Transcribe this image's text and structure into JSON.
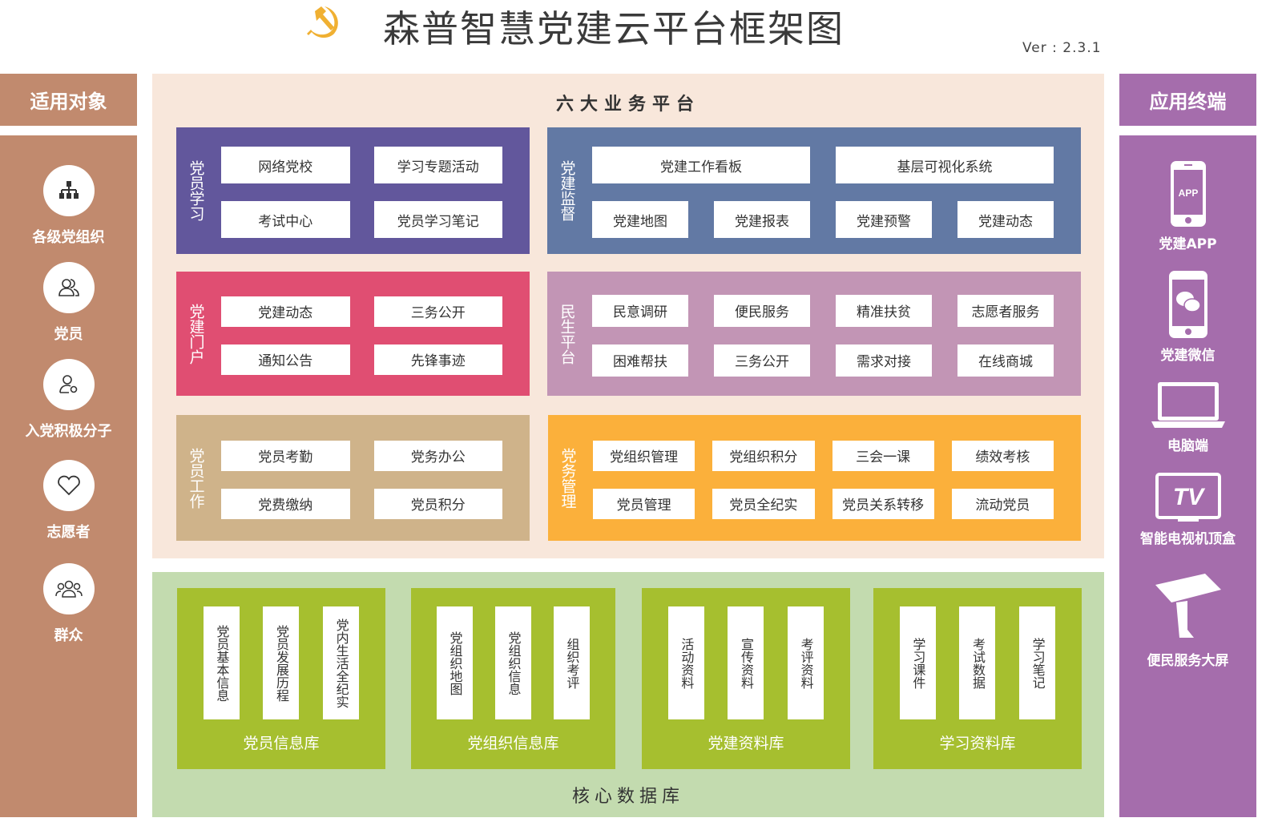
{
  "header": {
    "title": "森普智慧党建云平台框架图",
    "version": "Ver : 2.3.1",
    "logo": "hammer-sickle-icon",
    "logo_color": "#f0b032"
  },
  "left": {
    "title": "适用对象",
    "color": "#c18a6e",
    "items": [
      {
        "label": "各级党组织",
        "icon": "org-chart-icon"
      },
      {
        "label": "党员",
        "icon": "users-icon"
      },
      {
        "label": "入党积极分子",
        "icon": "user-gear-icon"
      },
      {
        "label": "志愿者",
        "icon": "heart-icon"
      },
      {
        "label": "群众",
        "icon": "group-icon"
      }
    ]
  },
  "right": {
    "title": "应用终端",
    "color": "#a56dac",
    "items": [
      {
        "label": "党建APP",
        "icon": "phone-app-icon",
        "icon_text": "APP"
      },
      {
        "label": "党建微信",
        "icon": "wechat-phone-icon"
      },
      {
        "label": "电脑端",
        "icon": "laptop-icon"
      },
      {
        "label": "智能电视机顶盒",
        "icon": "tv-icon",
        "icon_text": "TV"
      },
      {
        "label": "便民服务大屏",
        "icon": "kiosk-icon"
      }
    ]
  },
  "platforms": {
    "title": "六大业务平台",
    "boxes": [
      {
        "label": "党员学习",
        "color": "#62579c",
        "items": [
          "网络党校",
          "学习专题活动",
          "考试中心",
          "党员学习笔记"
        ]
      },
      {
        "label": "党建监督",
        "color": "#6279a4",
        "items": [
          "党建工作看板",
          "基层可视化系统",
          "党建地图",
          "党建报表",
          "党建预警",
          "党建动态"
        ]
      },
      {
        "label": "党建门户",
        "color": "#e04e72",
        "items": [
          "党建动态",
          "三务公开",
          "通知公告",
          "先锋事迹"
        ]
      },
      {
        "label": "民生平台",
        "color": "#c295b5",
        "items": [
          "民意调研",
          "便民服务",
          "精准扶贫",
          "志愿者服务",
          "困难帮扶",
          "三务公开",
          "需求对接",
          "在线商城"
        ]
      },
      {
        "label": "党员工作",
        "color": "#cfb38a",
        "items": [
          "党员考勤",
          "党务办公",
          "党费缴纳",
          "党员积分"
        ]
      },
      {
        "label": "党务管理",
        "color": "#fbb03b",
        "items": [
          "党组织管理",
          "党组织积分",
          "三会一课",
          "绩效考核",
          "党员管理",
          "党员全纪实",
          "党员关系转移",
          "流动党员"
        ]
      }
    ]
  },
  "database": {
    "title": "核心数据库",
    "color": "#a6bf2f",
    "groups": [
      {
        "label": "党员信息库",
        "items": [
          "党员基本信息",
          "党员发展历程",
          "党内生活全纪实"
        ]
      },
      {
        "label": "党组织信息库",
        "items": [
          "党组织地图",
          "党组织信息",
          "组织考评"
        ]
      },
      {
        "label": "党建资料库",
        "items": [
          "活动资料",
          "宣传资料",
          "考评资料"
        ]
      },
      {
        "label": "学习资料库",
        "items": [
          "学习课件",
          "考试数据",
          "学习笔记"
        ]
      }
    ]
  }
}
